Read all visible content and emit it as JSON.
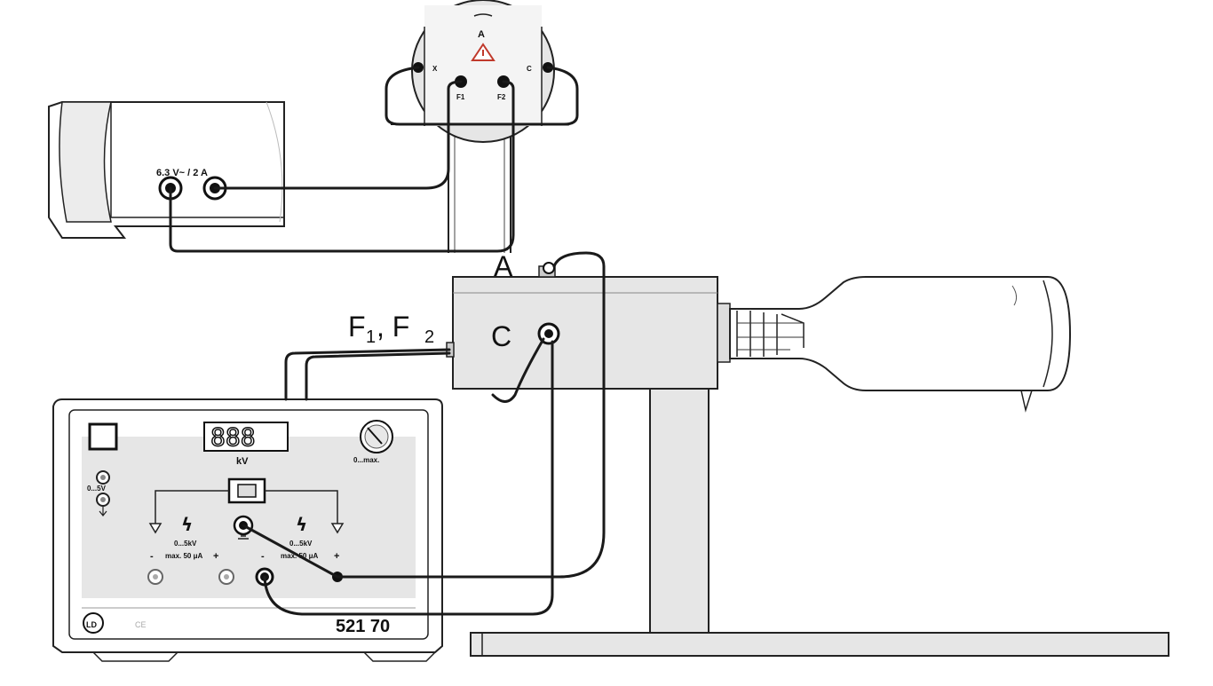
{
  "colors": {
    "panel_gray": "#e6e6e6",
    "light_gray": "#f0f0f0",
    "warning_red": "#c0392b",
    "line": "#1a1a1a"
  },
  "socket_closeup": {
    "anode": "A",
    "left_pin": "X",
    "right_pin": "C",
    "filament_1": "F1",
    "filament_2": "F2",
    "warning_icon": "warning-triangle-icon"
  },
  "transformer": {
    "output_label": "6.3 V~ / 2 A"
  },
  "tube": {
    "anode_label": "A",
    "cathode_label": "C",
    "filament_label_f": "F",
    "filament_sub_1": "1",
    "filament_sep": ", F",
    "filament_sub_2": "2"
  },
  "power_supply": {
    "display_digits": "888",
    "display_unit": "kV",
    "knob_label": "0...max.",
    "control_label": "0...5V",
    "left_range": "0...5kV",
    "left_current": "max. 50 μA",
    "right_range": "0...5kV",
    "right_current": "max. 50 μA",
    "minus": "-",
    "plus": "+",
    "ce_mark": "CE",
    "logo": "LD",
    "model_number": "521 70"
  }
}
